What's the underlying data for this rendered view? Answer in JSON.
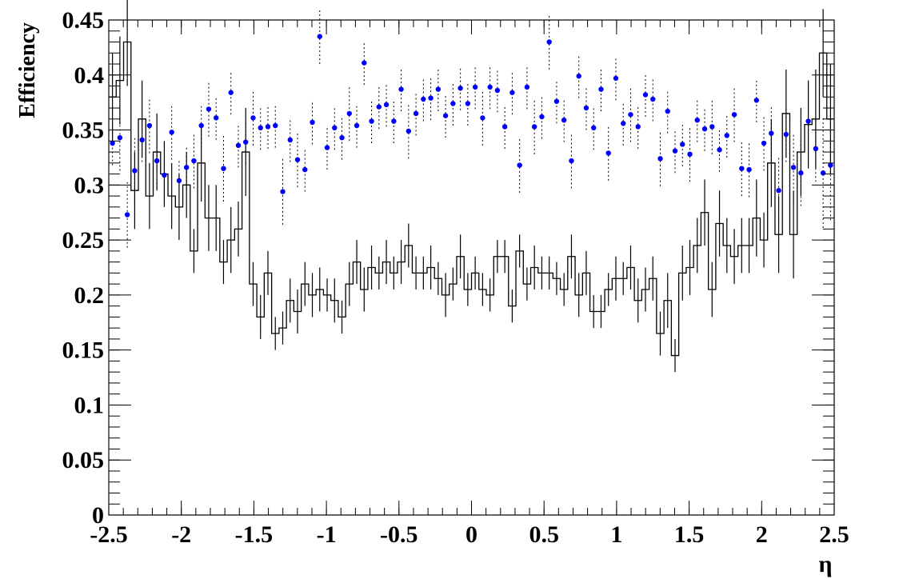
{
  "chart_data": {
    "type": "scatter",
    "title": "",
    "xlabel": "η",
    "ylabel": "Efficiency",
    "xlim": [
      -2.5,
      2.5
    ],
    "ylim": [
      0,
      0.45
    ],
    "x_ticks": [
      -2.5,
      -2,
      -1.5,
      -1,
      -0.5,
      0,
      0.5,
      1,
      1.5,
      2,
      2.5
    ],
    "x_tick_labels": [
      "-2.5",
      "-2",
      "-1.5",
      "-1",
      "-0.5",
      "0",
      "0.5",
      "1",
      "1.5",
      "2",
      "2.5"
    ],
    "y_ticks": [
      0,
      0.05,
      0.1,
      0.15,
      0.2,
      0.25,
      0.3,
      0.35,
      0.4,
      0.45
    ],
    "y_tick_labels": [
      "0",
      "0.05",
      "0.1",
      "0.15",
      "0.2",
      "0.25",
      "0.3",
      "0.35",
      "0.4",
      "0.45"
    ],
    "grid": false,
    "legend": "none",
    "bin_edges_range": [
      -2.5,
      2.5
    ],
    "series": [
      {
        "style": "blue markers with dotted error bars",
        "color": "#0000ff",
        "values": [
          0.338,
          0.343,
          0.273,
          0.313,
          0.341,
          0.354,
          0.322,
          0.309,
          0.348,
          0.304,
          0.316,
          0.322,
          0.354,
          0.369,
          0.361,
          0.315,
          0.384,
          0.336,
          0.339,
          0.361,
          0.352,
          0.353,
          0.354,
          0.294,
          0.341,
          0.323,
          0.314,
          0.357,
          0.435,
          0.334,
          0.352,
          0.343,
          0.365,
          0.354,
          0.411,
          0.358,
          0.371,
          0.373,
          0.358,
          0.387,
          0.349,
          0.365,
          0.378,
          0.379,
          0.387,
          0.363,
          0.374,
          0.388,
          0.374,
          0.389,
          0.361,
          0.389,
          0.386,
          0.353,
          0.384,
          0.318,
          0.389,
          0.353,
          0.362,
          0.43,
          0.376,
          0.359,
          0.322,
          0.399,
          0.37,
          0.352,
          0.387,
          0.329,
          0.397,
          0.356,
          0.364,
          0.353,
          0.382,
          0.378,
          0.324,
          0.367,
          0.331,
          0.337,
          0.328,
          0.359,
          0.351,
          0.353,
          0.332,
          0.345,
          0.364,
          0.315,
          0.314,
          0.377,
          0.338,
          0.347,
          0.295,
          0.346,
          0.316,
          0.311,
          0.358,
          0.333,
          0.311,
          0.318
        ],
        "errors": [
          0.02,
          0.03,
          0.03,
          0.03,
          0.02,
          0.025,
          0.025,
          0.02,
          0.025,
          0.02,
          0.02,
          0.025,
          0.02,
          0.025,
          0.02,
          0.03,
          0.02,
          0.02,
          0.02,
          0.025,
          0.02,
          0.02,
          0.02,
          0.03,
          0.02,
          0.025,
          0.02,
          0.02,
          0.025,
          0.02,
          0.02,
          0.02,
          0.025,
          0.02,
          0.02,
          0.02,
          0.02,
          0.02,
          0.02,
          0.02,
          0.025,
          0.02,
          0.02,
          0.02,
          0.02,
          0.02,
          0.02,
          0.02,
          0.02,
          0.02,
          0.025,
          0.02,
          0.02,
          0.02,
          0.02,
          0.025,
          0.02,
          0.025,
          0.02,
          0.025,
          0.02,
          0.02,
          0.025,
          0.02,
          0.02,
          0.02,
          0.02,
          0.025,
          0.02,
          0.02,
          0.025,
          0.02,
          0.02,
          0.02,
          0.025,
          0.02,
          0.02,
          0.02,
          0.025,
          0.02,
          0.02,
          0.025,
          0.02,
          0.02,
          0.025,
          0.025,
          0.025,
          0.02,
          0.025,
          0.025,
          0.03,
          0.025,
          0.03,
          0.03,
          0.03,
          0.03,
          0.05,
          0.05
        ]
      },
      {
        "style": "black step histogram with error bars",
        "color": "#000000",
        "values": [
          0.38,
          0.395,
          0.43,
          0.295,
          0.36,
          0.29,
          0.33,
          0.31,
          0.29,
          0.28,
          0.3,
          0.24,
          0.32,
          0.27,
          0.27,
          0.23,
          0.25,
          0.26,
          0.33,
          0.21,
          0.18,
          0.22,
          0.165,
          0.17,
          0.195,
          0.185,
          0.21,
          0.2,
          0.205,
          0.2,
          0.195,
          0.18,
          0.21,
          0.23,
          0.205,
          0.225,
          0.22,
          0.23,
          0.22,
          0.23,
          0.245,
          0.22,
          0.22,
          0.225,
          0.215,
          0.2,
          0.21,
          0.235,
          0.205,
          0.22,
          0.205,
          0.2,
          0.235,
          0.235,
          0.19,
          0.24,
          0.21,
          0.225,
          0.22,
          0.22,
          0.215,
          0.205,
          0.235,
          0.2,
          0.22,
          0.185,
          0.185,
          0.205,
          0.215,
          0.215,
          0.225,
          0.195,
          0.205,
          0.215,
          0.165,
          0.195,
          0.145,
          0.22,
          0.225,
          0.245,
          0.275,
          0.205,
          0.265,
          0.245,
          0.235,
          0.245,
          0.245,
          0.27,
          0.25,
          0.32,
          0.255,
          0.365,
          0.255,
          0.33,
          0.355,
          0.36,
          0.42,
          0.36
        ],
        "errors": [
          0.04,
          0.04,
          0.04,
          0.035,
          0.035,
          0.03,
          0.035,
          0.03,
          0.03,
          0.03,
          0.03,
          0.02,
          0.035,
          0.03,
          0.03,
          0.02,
          0.03,
          0.025,
          0.04,
          0.02,
          0.02,
          0.02,
          0.015,
          0.015,
          0.02,
          0.02,
          0.02,
          0.02,
          0.02,
          0.015,
          0.02,
          0.015,
          0.02,
          0.02,
          0.02,
          0.02,
          0.015,
          0.02,
          0.015,
          0.02,
          0.02,
          0.015,
          0.015,
          0.02,
          0.015,
          0.02,
          0.015,
          0.02,
          0.015,
          0.015,
          0.015,
          0.015,
          0.015,
          0.015,
          0.015,
          0.015,
          0.015,
          0.02,
          0.015,
          0.015,
          0.015,
          0.015,
          0.02,
          0.02,
          0.02,
          0.015,
          0.015,
          0.015,
          0.02,
          0.015,
          0.02,
          0.02,
          0.02,
          0.02,
          0.02,
          0.025,
          0.015,
          0.025,
          0.025,
          0.025,
          0.03,
          0.025,
          0.03,
          0.025,
          0.025,
          0.025,
          0.025,
          0.035,
          0.025,
          0.04,
          0.035,
          0.04,
          0.04,
          0.04,
          0.04,
          0.045,
          0.04,
          0.05
        ]
      }
    ]
  }
}
